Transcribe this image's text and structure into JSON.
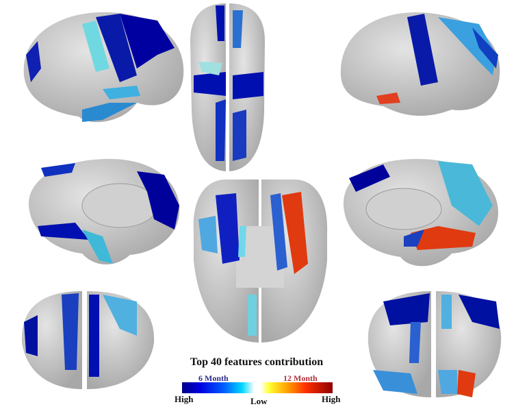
{
  "legend": {
    "title": "Top 40 features contribution",
    "left_group": "6 Month",
    "right_group": "12 Month",
    "left_end": "High",
    "center": "Low",
    "right_end": "High"
  },
  "colors": {
    "cortex": "#c8c8c8",
    "six_month_high": "#00008c",
    "six_month_low": "#00e0ff",
    "twelve_month_low": "#ffff30",
    "twelve_month_high": "#900000"
  },
  "views": [
    "lateral-left",
    "superior",
    "lateral-right",
    "medial-left",
    "inferior",
    "medial-right",
    "anterior",
    "posterior"
  ]
}
